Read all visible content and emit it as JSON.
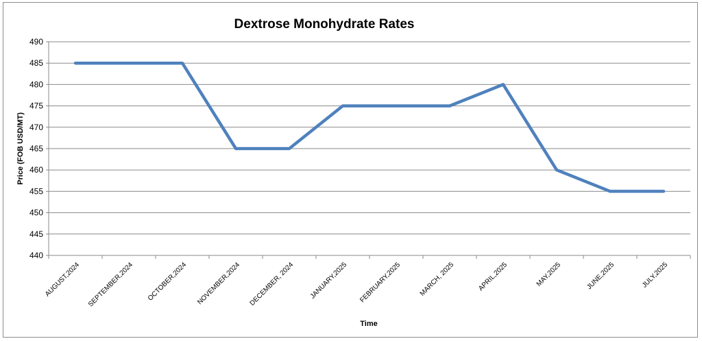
{
  "chart_data": {
    "type": "line",
    "title": "Dextrose Monohydrate Rates",
    "xlabel": "Time",
    "ylabel": "Price (FOB USD/MT)",
    "ylim": [
      440,
      490
    ],
    "y_ticks": [
      440,
      445,
      450,
      455,
      460,
      465,
      470,
      475,
      480,
      485,
      490
    ],
    "grid": "horizontal",
    "legend": "none",
    "categories": [
      "AUGUST,2024",
      "SEPTEMBER,2024",
      "OCTOBER,2024",
      "NOVEMBER,2024",
      "DECEMBER, 2024",
      "JANUARY,2025",
      "FEBRUARY,2025",
      "MARCH, 2025",
      "APRIL,2025",
      "MAY,2025",
      "JUNE,2025",
      "JULY,2025"
    ],
    "series": [
      {
        "values": [
          485,
          485,
          485,
          465,
          465,
          475,
          475,
          475,
          480,
          460,
          455,
          455
        ],
        "color": "#4f81bd"
      }
    ]
  }
}
